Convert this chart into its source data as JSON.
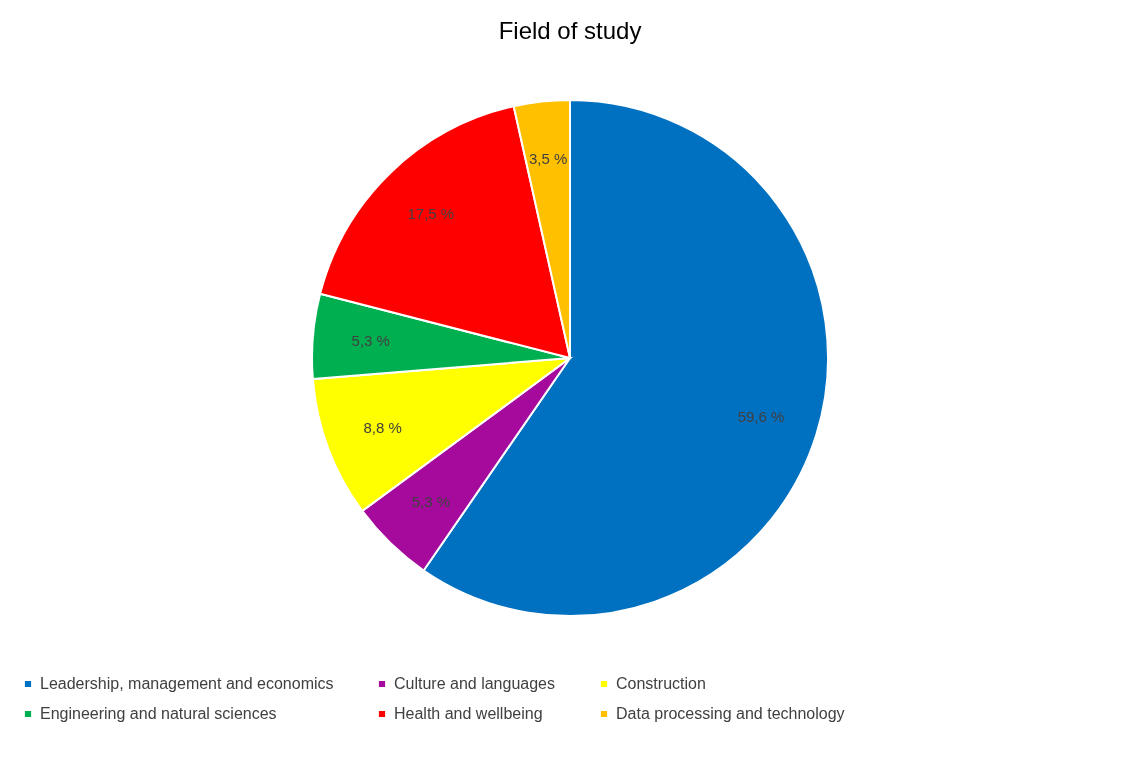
{
  "chart_data": {
    "type": "pie",
    "title": "Field of study",
    "categories": [
      "Leadership, management and economics",
      "Culture and languages",
      "Construction",
      "Engineering and natural sciences",
      "Health and wellbeing",
      "Data processing and technology"
    ],
    "values": [
      59.6,
      5.3,
      8.8,
      5.3,
      17.5,
      3.5
    ],
    "colors": [
      "#0070c0",
      "#a50a9c",
      "#ffff00",
      "#00b050",
      "#ff0000",
      "#ffc000"
    ],
    "value_labels": [
      "59,6 %",
      "5,3 %",
      "8,8 %",
      "5,3 %",
      "17,5 %",
      "3,5 %"
    ],
    "legend": "bottom"
  }
}
